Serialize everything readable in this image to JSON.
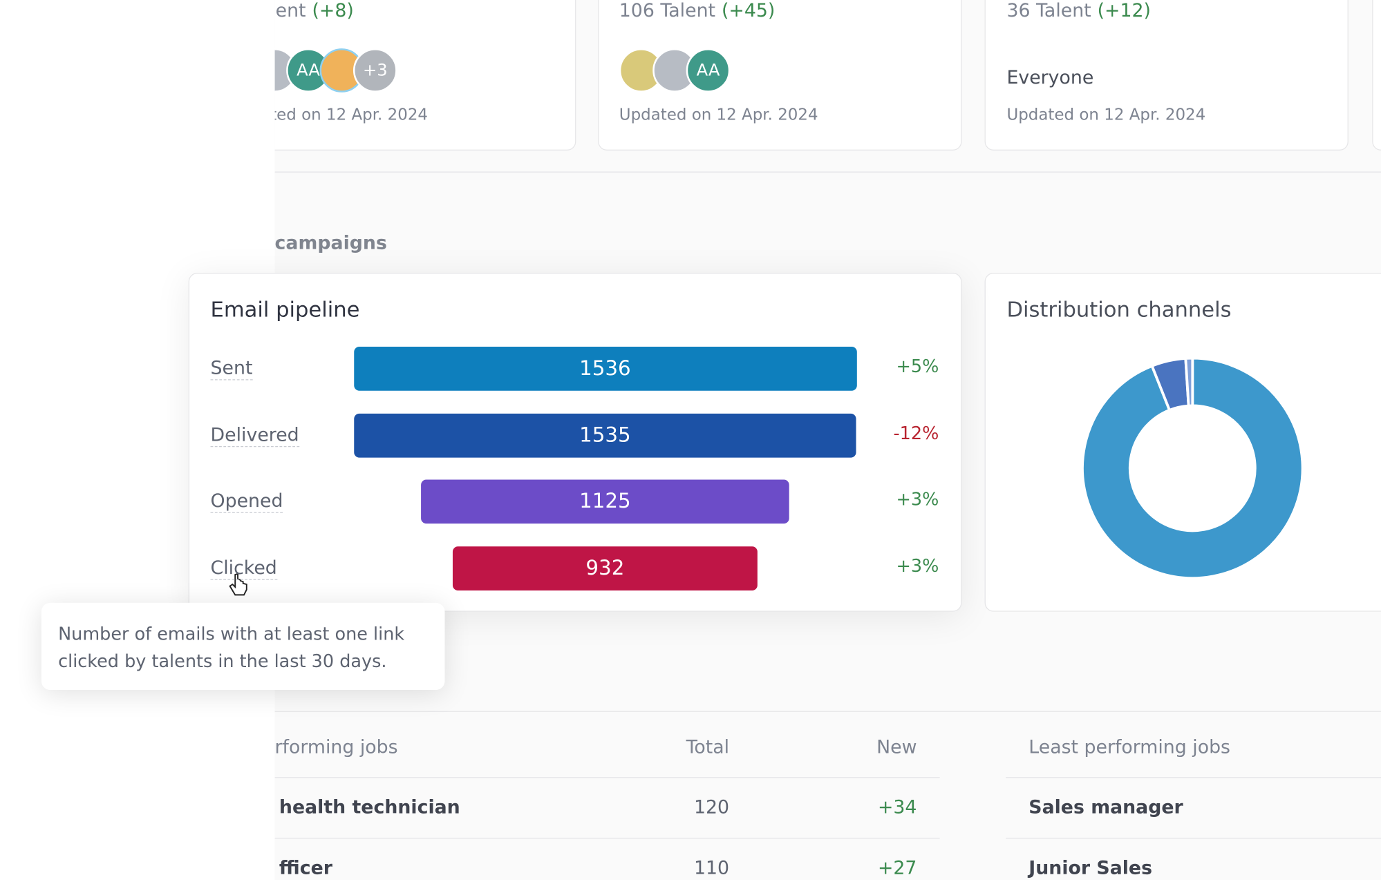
{
  "talent_cards": [
    {
      "count_label": "lent",
      "change": "(+8)",
      "avatars": [
        "AA",
        "+3"
      ],
      "updated": "ted on 12 Apr. 2024"
    },
    {
      "count_label": "106 Talent",
      "change": "(+45)",
      "avatars": [
        "AA"
      ],
      "updated": "Updated on 12 Apr. 2024"
    },
    {
      "count_label": "36 Talent",
      "change": "(+12)",
      "audience": "Everyone",
      "updated": "Updated on 12 Apr. 2024"
    }
  ],
  "section_title": "campaigns",
  "email_pipeline": {
    "type": "bar",
    "title": "Email pipeline",
    "categories": [
      "Sent",
      "Delivered",
      "Opened",
      "Clicked"
    ],
    "values": [
      1536,
      1535,
      1125,
      932
    ],
    "colors": [
      "#0e7fbd",
      "#1c52a6",
      "#6c4cc8",
      "#bf1546"
    ],
    "changes": [
      "+5%",
      "-12%",
      "+3%",
      "+3%"
    ]
  },
  "distribution_channels": {
    "type": "pie",
    "title": "Distribution channels",
    "values": [
      94,
      5,
      1
    ],
    "colors": [
      "#3d98cc",
      "#4a74c0",
      "#7f9fd8"
    ]
  },
  "tooltip": "Number of emails with at least one link clicked by talents in the last 30 days.",
  "top_jobs": {
    "headers": [
      "rforming jobs",
      "Total",
      "New"
    ],
    "rows": [
      [
        "health technician",
        "120",
        "+34"
      ],
      [
        "fficer",
        "110",
        "+27"
      ]
    ]
  },
  "least_jobs": {
    "headers": [
      "Least performing jobs"
    ],
    "rows": [
      [
        "Sales manager"
      ],
      [
        "Junior Sales"
      ]
    ]
  }
}
